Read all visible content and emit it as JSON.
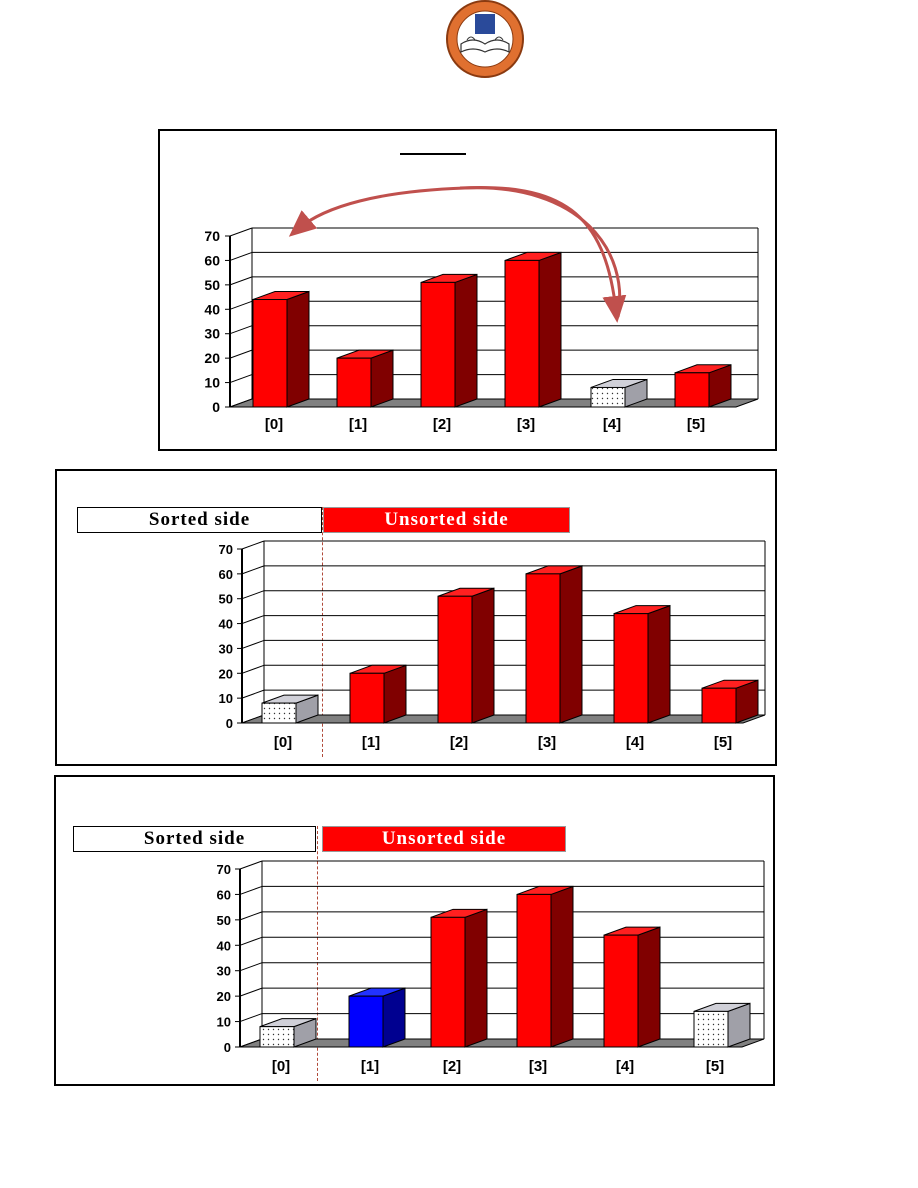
{
  "colors": {
    "red_front": "#ff0000",
    "red_side": "#800000",
    "red_top": "#ff2020",
    "blue_front": "#0000ff",
    "blue_side": "#000090",
    "blue_top": "#2233ff",
    "white_front": "#ffffff",
    "white_side": "#a0a0a8",
    "white_top": "#d0d0d8",
    "floor": "#808080",
    "arrow": "#c0504d"
  },
  "logo": {
    "icon": "university-seal-icon"
  },
  "chart_data": [
    {
      "type": "bar",
      "categories": [
        "[0]",
        "[1]",
        "[2]",
        "[3]",
        "[4]",
        "[5]"
      ],
      "values": [
        44,
        20,
        51,
        60,
        8,
        14
      ],
      "bar_colors": [
        "red",
        "red",
        "red",
        "red",
        "white",
        "red"
      ],
      "ylim": [
        0,
        70
      ],
      "yticks": [
        "0",
        "10",
        "20",
        "30",
        "40",
        "50",
        "60",
        "70"
      ],
      "annotation": "swap-arrow-[0]-to-[4]"
    },
    {
      "type": "bar",
      "categories": [
        "[0]",
        "[1]",
        "[2]",
        "[3]",
        "[4]",
        "[5]"
      ],
      "values": [
        8,
        20,
        51,
        60,
        44,
        14
      ],
      "bar_colors": [
        "white",
        "red",
        "red",
        "red",
        "red",
        "red"
      ],
      "ylim": [
        0,
        70
      ],
      "yticks": [
        "0",
        "10",
        "20",
        "30",
        "40",
        "50",
        "60",
        "70"
      ],
      "legend": {
        "sorted": "Sorted side",
        "unsorted": "Unsorted side"
      }
    },
    {
      "type": "bar",
      "categories": [
        "[0]",
        "[1]",
        "[2]",
        "[3]",
        "[4]",
        "[5]"
      ],
      "values": [
        8,
        20,
        51,
        60,
        44,
        14
      ],
      "bar_colors": [
        "white",
        "blue",
        "red",
        "red",
        "red",
        "white"
      ],
      "ylim": [
        0,
        70
      ],
      "yticks": [
        "0",
        "10",
        "20",
        "30",
        "40",
        "50",
        "60",
        "70"
      ],
      "legend": {
        "sorted": "Sorted side",
        "unsorted": "Unsorted side"
      }
    }
  ]
}
